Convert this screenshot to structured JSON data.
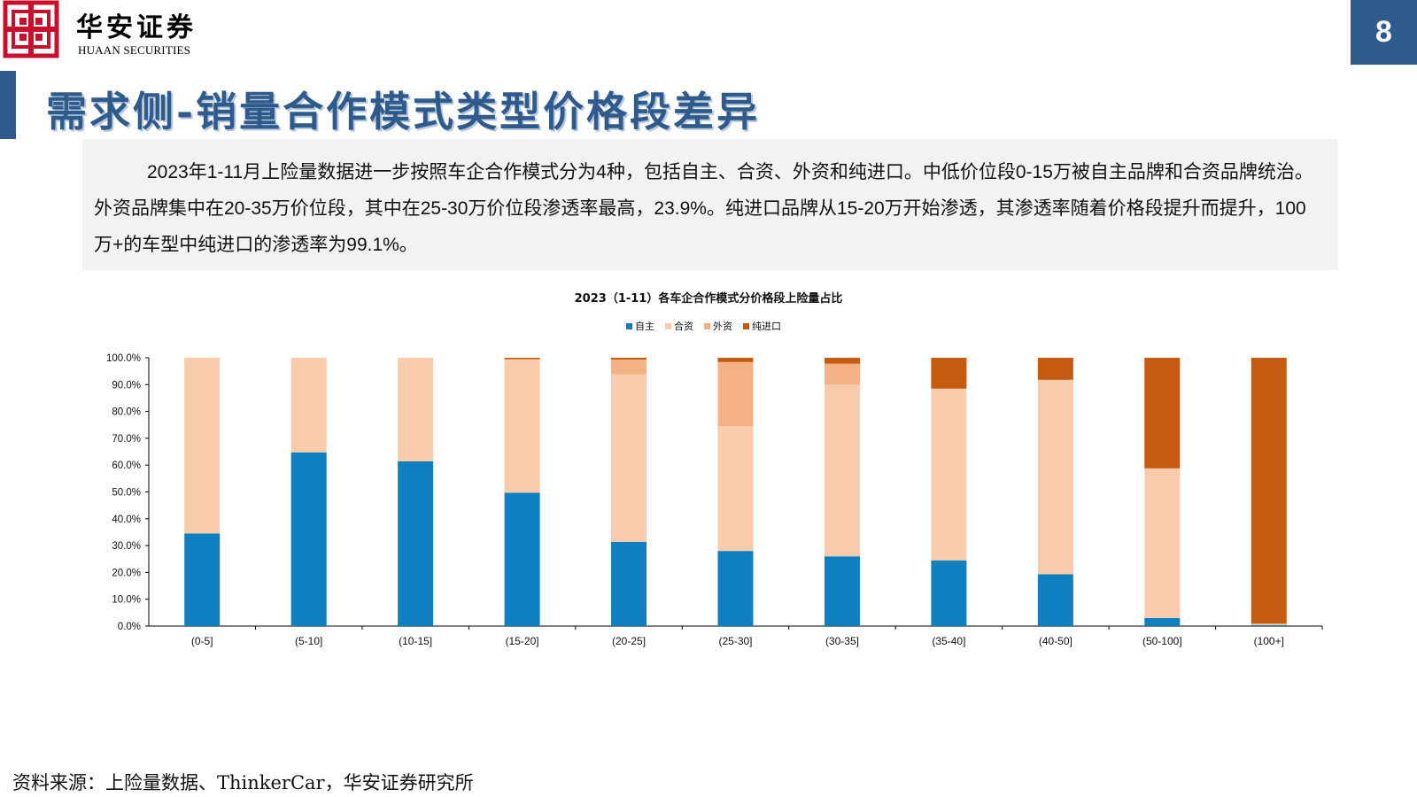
{
  "header": {
    "brand_cn": "华安证券",
    "brand_en": "HUAAN SECURITIES",
    "page_number": "8",
    "accent_color": "#2f5a8c",
    "logo_color": "#c8102e"
  },
  "title": "需求侧-销量合作模式类型价格段差异",
  "summary": "2023年1-11月上险量数据进一步按照车企合作模式分为4种，包括自主、合资、外资和纯进口。中低价位段0-15万被自主品牌和合资品牌统治。外资品牌集中在20-35万价位段，其中在25-30万价位段渗透率最高，23.9%。纯进口品牌从15-20万开始渗透，其渗透率随着价格段提升而提升，100万+的车型中纯进口的渗透率为99.1%。",
  "chart_data": {
    "type": "bar",
    "stacked": true,
    "title": "2023（1-11）各车企合作模式分价格段上险量占比",
    "legend_position": "top",
    "categories": [
      "(0-5]",
      "(5-10]",
      "(10-15]",
      "(15-20]",
      "(20-25]",
      "(25-30]",
      "(30-35]",
      "(35-40]",
      "(40-50]",
      "(50-100]",
      "(100+]"
    ],
    "series": [
      {
        "name": "自主",
        "color": "#0f7fbf",
        "values": [
          34.5,
          64.7,
          61.4,
          49.7,
          31.4,
          28.0,
          26.0,
          24.5,
          19.3,
          3.0,
          0.4
        ]
      },
      {
        "name": "合资",
        "color": "#f7cbab",
        "values": [
          65.5,
          35.3,
          38.6,
          49.6,
          62.5,
          46.5,
          64.0,
          64.0,
          72.5,
          55.6,
          0.3
        ]
      },
      {
        "name": "外资",
        "color": "#f4b183",
        "values": [
          0,
          0,
          0,
          0.2,
          5.4,
          23.9,
          7.8,
          0,
          0,
          0.2,
          0.2
        ]
      },
      {
        "name": "纯进口",
        "color": "#c55a11",
        "values": [
          0,
          0,
          0,
          0.5,
          0.7,
          1.6,
          2.2,
          11.5,
          8.2,
          41.2,
          99.1
        ]
      }
    ],
    "ylim": [
      0,
      100
    ],
    "yticks": [
      "0.0%",
      "10.0%",
      "20.0%",
      "30.0%",
      "40.0%",
      "50.0%",
      "60.0%",
      "70.0%",
      "80.0%",
      "90.0%",
      "100.0%"
    ],
    "grid": false
  },
  "source": "资料来源：上险量数据、ThinkerCar，华安证券研究所"
}
